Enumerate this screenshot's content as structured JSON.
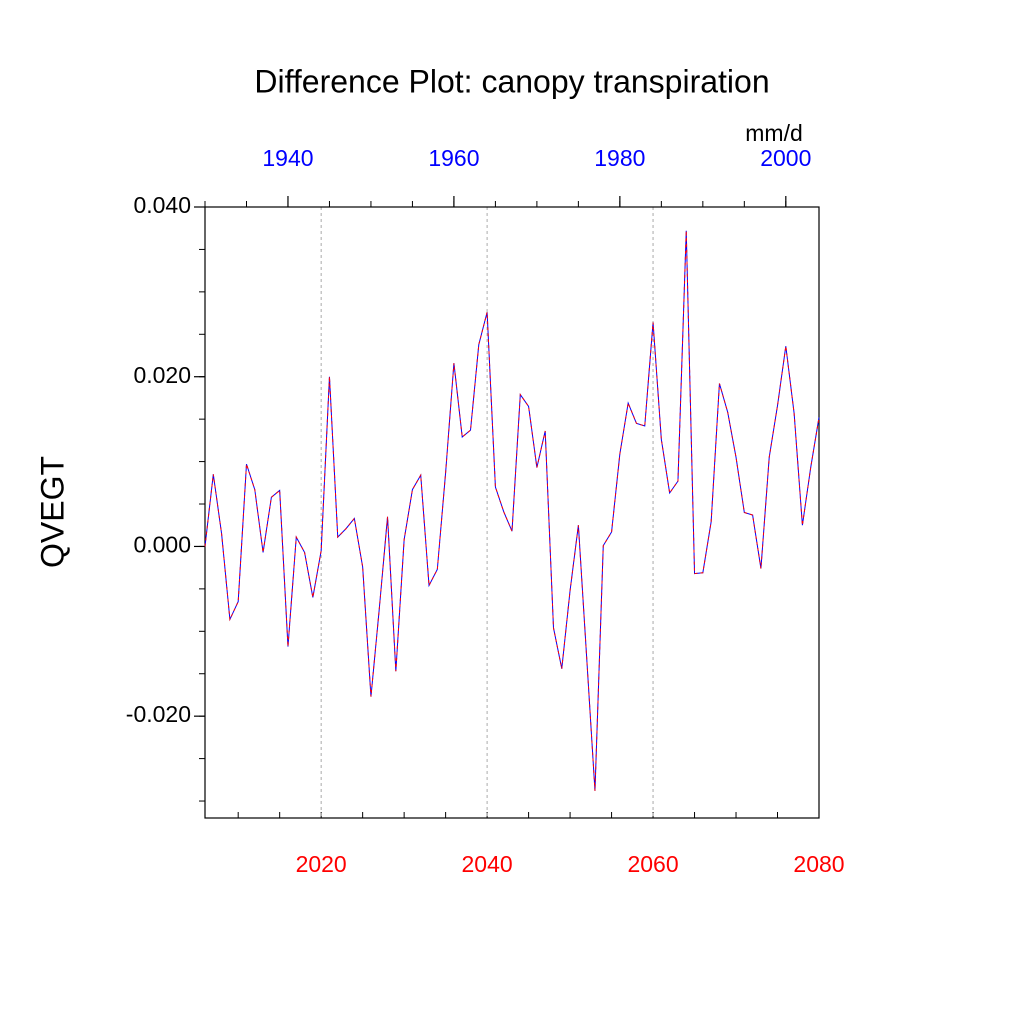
{
  "chart_data": {
    "type": "line",
    "title": "Difference Plot: canopy transpiration",
    "ylabel": "QVEGT",
    "units": "mm/d",
    "x": [
      2006,
      2007,
      2008,
      2009,
      2010,
      2011,
      2012,
      2013,
      2014,
      2015,
      2016,
      2017,
      2018,
      2019,
      2020,
      2021,
      2022,
      2023,
      2024,
      2025,
      2026,
      2027,
      2028,
      2029,
      2030,
      2031,
      2032,
      2033,
      2034,
      2035,
      2036,
      2037,
      2038,
      2039,
      2040,
      2041,
      2042,
      2043,
      2044,
      2045,
      2046,
      2047,
      2048,
      2049,
      2050,
      2051,
      2052,
      2053,
      2054,
      2055,
      2056,
      2057,
      2058,
      2059,
      2060,
      2061,
      2062,
      2063,
      2064,
      2065,
      2066,
      2067,
      2068,
      2069,
      2070,
      2071,
      2072,
      2073,
      2074,
      2075,
      2076,
      2077,
      2078,
      2079,
      2080
    ],
    "values": [
      0.0,
      0.0085,
      0.0015,
      -0.0086,
      -0.0065,
      0.0097,
      0.0067,
      -0.0007,
      0.0058,
      0.0066,
      -0.0118,
      0.0011,
      -0.0007,
      -0.006,
      -0.0005,
      0.02,
      0.0011,
      0.0021,
      0.0033,
      -0.0024,
      -0.0177,
      -0.0074,
      0.0035,
      -0.0147,
      0.0008,
      0.0067,
      0.0084,
      -0.0046,
      -0.0027,
      0.0087,
      0.0216,
      0.0129,
      0.0137,
      0.0238,
      0.0276,
      0.007,
      0.0041,
      0.0018,
      0.0179,
      0.0165,
      0.0093,
      0.0136,
      -0.0096,
      -0.0144,
      -0.0052,
      0.0025,
      -0.0131,
      -0.0288,
      0.0001,
      0.0017,
      0.0109,
      0.0169,
      0.0145,
      0.0142,
      0.0264,
      0.0126,
      0.0063,
      0.0077,
      0.0372,
      -0.0032,
      -0.0031,
      0.0029,
      0.0192,
      0.0158,
      0.0105,
      0.004,
      0.0037,
      -0.0026,
      0.0105,
      0.0166,
      0.0236,
      0.0157,
      0.0025,
      0.0093,
      0.0152
    ],
    "color": "#0000ff",
    "dash_color": "#ff0000",
    "xlim": [
      2006,
      2080
    ],
    "xticks": [
      2020,
      2040,
      2060,
      2080
    ],
    "xtick_color": "#ff0000",
    "top_xlim": [
      1930,
      2004
    ],
    "top_xticks": [
      1940,
      1960,
      1980,
      2000
    ],
    "top_xtick_color": "#0000ff",
    "x_minor_step": 5,
    "ylim": [
      -0.032,
      0.04
    ],
    "yticks": [
      {
        "value": -0.02,
        "label": "-0.020"
      },
      {
        "value": 0,
        "label": "0.000"
      },
      {
        "value": 0.02,
        "label": "0.020"
      },
      {
        "value": 0.04,
        "label": "0.040"
      }
    ],
    "y_minor_step": 0.005,
    "grid": true
  }
}
